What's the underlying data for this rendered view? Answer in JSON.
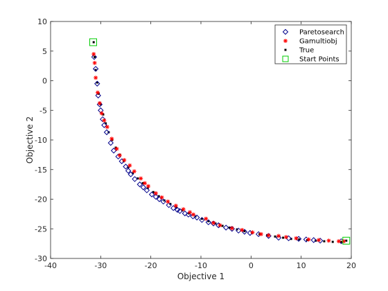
{
  "chart_data": {
    "type": "scatter",
    "title": "",
    "xlabel": "Objective 1",
    "ylabel": "Objective 2",
    "xlim": [
      -40,
      20
    ],
    "ylim": [
      -30,
      10
    ],
    "xticks": [
      "-40",
      "-30",
      "-20",
      "-10",
      "0",
      "10",
      "20"
    ],
    "yticks": [
      "10",
      "5",
      "0",
      "-5",
      "-10",
      "-15",
      "-20",
      "-25",
      "-30"
    ],
    "grid": false,
    "legend_position": "top-right",
    "series": [
      {
        "name": "Paretosearch",
        "marker": "diamond",
        "color": "#00008b",
        "x": [
          -31.3,
          -31.0,
          -30.7,
          -30.5,
          -30.2,
          -30.0,
          -29.6,
          -29.3,
          -28.8,
          -28.0,
          -27.4,
          -26.5,
          -25.8,
          -25.0,
          -24.5,
          -24.0,
          -23.2,
          -22.2,
          -21.5,
          -20.8,
          -19.8,
          -19.0,
          -18.3,
          -17.5,
          -16.4,
          -15.5,
          -14.7,
          -14.2,
          -13.2,
          -12.5,
          -11.6,
          -10.8,
          -9.8,
          -8.5,
          -7.5,
          -6.5,
          -5.0,
          -3.8,
          -2.5,
          -1.3,
          -0.2,
          1.5,
          3.5,
          5.5,
          7.5,
          9.5,
          11.0,
          12.5,
          13.8,
          18.0
        ],
        "y": [
          4.0,
          2.0,
          -0.5,
          -2.5,
          -4.0,
          -5.0,
          -6.5,
          -7.5,
          -8.7,
          -10.5,
          -11.8,
          -12.8,
          -13.6,
          -14.5,
          -15.2,
          -15.8,
          -16.6,
          -17.5,
          -18.0,
          -18.5,
          -19.2,
          -19.6,
          -20.0,
          -20.4,
          -21.0,
          -21.5,
          -21.8,
          -22.0,
          -22.4,
          -22.6,
          -22.9,
          -23.1,
          -23.5,
          -23.9,
          -24.1,
          -24.4,
          -24.8,
          -25.0,
          -25.3,
          -25.5,
          -25.7,
          -25.9,
          -26.2,
          -26.5,
          -26.6,
          -26.7,
          -26.8,
          -26.9,
          -27.0,
          -27.1
        ]
      },
      {
        "name": "Gamultiobj",
        "marker": "star",
        "color": "#ff0000",
        "x": [
          -31.4,
          -31.2,
          -31.0,
          -30.6,
          -30.2,
          -29.8,
          -29.3,
          -28.7,
          -27.8,
          -26.8,
          -26.2,
          -25.3,
          -24.2,
          -23.3,
          -22.0,
          -21.2,
          -20.5,
          -19.0,
          -17.8,
          -16.6,
          -15.0,
          -13.5,
          -12.2,
          -11.5,
          -9.0,
          -7.5,
          -6.2,
          -3.8,
          -1.8,
          0.3,
          2.0,
          3.5,
          5.5,
          7.0,
          9.0,
          11.5,
          13.5,
          15.5,
          17.5,
          18.5
        ],
        "y": [
          4.5,
          3.0,
          0.5,
          -2.0,
          -3.8,
          -5.5,
          -6.7,
          -7.8,
          -9.8,
          -11.5,
          -12.6,
          -13.4,
          -14.3,
          -15.3,
          -16.5,
          -17.3,
          -17.8,
          -19.0,
          -19.7,
          -20.4,
          -21.1,
          -21.7,
          -22.2,
          -22.6,
          -23.3,
          -24.0,
          -24.4,
          -24.9,
          -25.2,
          -25.6,
          -25.9,
          -26.1,
          -26.2,
          -26.4,
          -26.6,
          -26.8,
          -26.9,
          -27.0,
          -27.1,
          -27.1
        ]
      },
      {
        "name": "True",
        "marker": "dot",
        "color": "#000000",
        "x": [
          -31.4,
          -31.2,
          -31.0,
          -30.7,
          -30.4,
          -30.0,
          -29.5,
          -29.0,
          -28.4,
          -27.7,
          -27.0,
          -26.2,
          -25.4,
          -24.5,
          -23.6,
          -22.6,
          -21.6,
          -20.6,
          -19.5,
          -18.4,
          -17.3,
          -16.1,
          -14.9,
          -13.7,
          -12.4,
          -11.1,
          -9.8,
          -8.5,
          -7.1,
          -5.7,
          -4.3,
          -2.8,
          -1.3,
          0.2,
          1.7,
          3.2,
          4.8,
          6.4,
          8.0,
          9.6,
          11.2,
          12.9,
          14.6,
          16.3,
          18.0,
          19.0
        ],
        "y": [
          6.5,
          4.0,
          1.8,
          -0.3,
          -2.2,
          -4.0,
          -5.7,
          -7.2,
          -8.7,
          -10.0,
          -11.3,
          -12.5,
          -13.6,
          -14.6,
          -15.6,
          -16.5,
          -17.3,
          -18.1,
          -18.8,
          -19.5,
          -20.2,
          -20.8,
          -21.4,
          -21.9,
          -22.4,
          -22.9,
          -23.3,
          -23.7,
          -24.1,
          -24.5,
          -24.8,
          -25.1,
          -25.4,
          -25.7,
          -25.9,
          -26.1,
          -26.3,
          -26.5,
          -26.7,
          -26.8,
          -26.9,
          -27.0,
          -27.1,
          -27.2,
          -27.2,
          -27.0
        ]
      },
      {
        "name": "Start Points",
        "marker": "square",
        "color": "#00cc00",
        "x": [
          -31.5,
          19.0
        ],
        "y": [
          6.5,
          -27.0
        ]
      }
    ]
  }
}
